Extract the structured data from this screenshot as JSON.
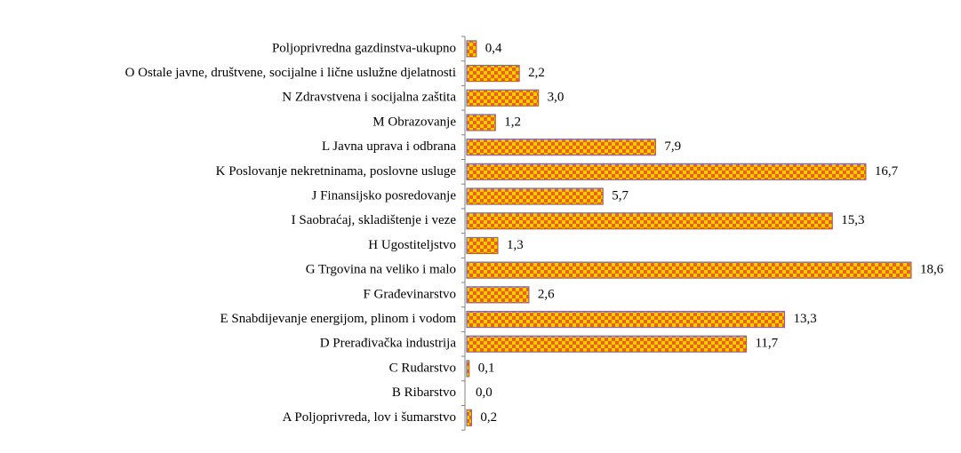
{
  "chart_data": {
    "type": "bar",
    "orientation": "horizontal",
    "categories": [
      "Poljoprivredna gazdinstva-ukupno",
      "O Ostale javne, društvene, socijalne i lične uslužne djelatnosti",
      "N Zdravstvena i socijalna zaštita",
      "M Obrazovanje",
      "L Javna uprava i odbrana",
      "K Poslovanje nekretninama, poslovne usluge",
      "J Finansijsko posredovanje",
      "I Saobraćaj, skladištenje i veze",
      "H Ugostiteljstvo",
      "G Trgovina na veliko i malo",
      "F Građevinarstvo",
      "E Snabdijevanje energijom, plinom i vodom",
      "D Prerađivačka industrija",
      "C Rudarstvo",
      "B Ribarstvo",
      "A Poljoprivreda, lov i šumarstvo"
    ],
    "values": [
      0.4,
      2.2,
      3.0,
      1.2,
      7.9,
      16.7,
      5.7,
      15.3,
      1.3,
      18.6,
      2.6,
      13.3,
      11.7,
      0.1,
      0.0,
      0.2
    ],
    "value_labels": [
      "0,4",
      "2,2",
      "3,0",
      "1,2",
      "7,9",
      "16,7",
      "5,7",
      "15,3",
      "1,3",
      "18,6",
      "2,6",
      "13,3",
      "11,7",
      "0,1",
      "0,0",
      "0,2"
    ],
    "xlim": [
      0,
      20
    ],
    "color": "#ffcc00"
  }
}
